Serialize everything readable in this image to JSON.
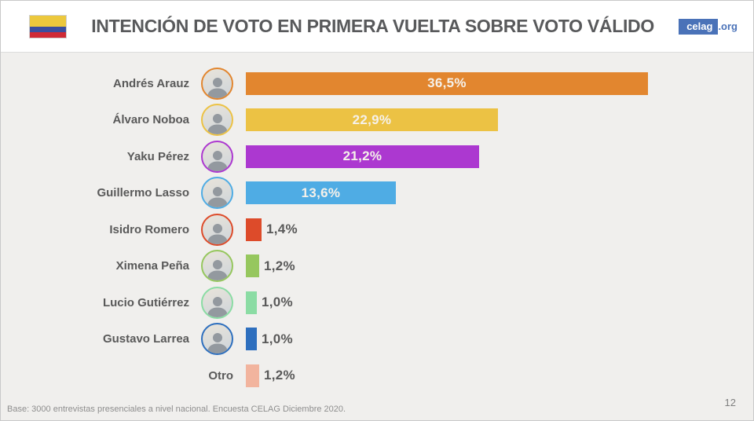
{
  "header": {
    "title": "INTENCIÓN DE VOTO EN PRIMERA VUELTA SOBRE VOTO VÁLIDO",
    "logo": {
      "primary": "celag",
      "suffix": ".org",
      "brand_color": "#4a72b8"
    },
    "flag_colors": {
      "yellow": "#ecc83d",
      "blue": "#3a4e9f",
      "red": "#cf2a36"
    }
  },
  "chart_data": {
    "type": "bar",
    "orientation": "horizontal",
    "title": "INTENCIÓN DE VOTO EN PRIMERA VUELTA SOBRE VOTO VÁLIDO",
    "categories": [
      "Andrés Arauz",
      "Álvaro Noboa",
      "Yaku Pérez",
      "Guillermo Lasso",
      "Isidro Romero",
      "Ximena Peña",
      "Lucio Gutiérrez",
      "Gustavo Larrea",
      "Otro"
    ],
    "values": [
      36.5,
      22.9,
      21.2,
      13.6,
      1.4,
      1.2,
      1.0,
      1.0,
      1.2
    ],
    "value_labels": [
      "36,5%",
      "22,9%",
      "21,2%",
      "13,6%",
      "1,4%",
      "1,2%",
      "1,0%",
      "1,0%",
      "1,2%"
    ],
    "bar_colors": [
      "#e2862f",
      "#ecc244",
      "#ac38d0",
      "#4face4",
      "#dd4b2a",
      "#96c75e",
      "#8bdca4",
      "#2e6fbe",
      "#f2b49e"
    ],
    "has_photo": [
      true,
      true,
      true,
      true,
      true,
      true,
      true,
      true,
      false
    ],
    "xlim": [
      0,
      38
    ],
    "grid": "off",
    "legend": "none",
    "value_label_position": "inside-if-large",
    "background": "#f0efed"
  },
  "footer": {
    "source_note": "Base: 3000 entrevistas presenciales a nivel nacional. Encuesta CELAG Diciembre 2020.",
    "page_number": "12"
  }
}
